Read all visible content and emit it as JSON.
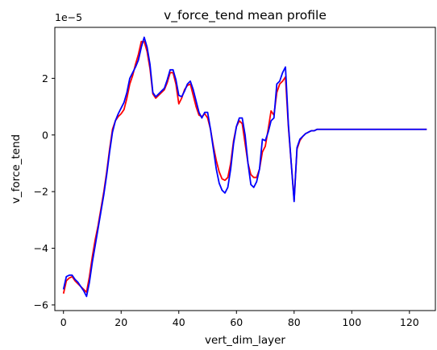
{
  "chart_data": {
    "type": "line",
    "title": "v_force_tend mean profile",
    "xlabel": "vert_dim_layer",
    "ylabel": "v_force_tend",
    "scale_note": "1e−5",
    "xlim": [
      -3,
      129
    ],
    "ylim": [
      -6.2,
      3.8
    ],
    "xticks": [
      0,
      20,
      40,
      60,
      80,
      100,
      120
    ],
    "yticks": [
      -6,
      -4,
      -2,
      0,
      2
    ],
    "grid": false,
    "legend": "none",
    "series": [
      {
        "color": "#ff0000",
        "x": [
          0,
          1,
          2,
          3,
          4,
          5,
          6,
          7,
          8,
          9,
          10,
          11,
          12,
          13,
          14,
          15,
          16,
          17,
          18,
          19,
          20,
          21,
          22,
          23,
          24,
          25,
          26,
          27,
          28,
          29,
          30,
          31,
          32,
          33,
          34,
          35,
          36,
          37,
          38,
          39,
          40,
          41,
          42,
          43,
          44,
          45,
          46,
          47,
          48,
          49,
          50,
          51,
          52,
          53,
          54,
          55,
          56,
          57,
          58,
          59,
          60,
          61,
          62,
          63,
          64,
          65,
          66,
          67,
          68,
          69,
          70,
          71,
          72,
          73,
          74,
          75,
          76,
          77,
          78,
          79,
          80,
          81,
          82,
          83,
          84,
          85,
          86,
          87,
          88,
          89,
          90,
          95,
          100,
          105,
          110,
          115,
          120,
          126
        ],
        "values": [
          -5.6,
          -5.15,
          -5.05,
          -5.0,
          -5.15,
          -5.25,
          -5.35,
          -5.45,
          -5.55,
          -5.0,
          -4.3,
          -3.7,
          -3.2,
          -2.6,
          -2.0,
          -1.3,
          -0.5,
          0.2,
          0.5,
          0.65,
          0.75,
          0.9,
          1.3,
          1.8,
          2.1,
          2.5,
          2.85,
          3.3,
          3.3,
          2.95,
          2.35,
          1.45,
          1.3,
          1.4,
          1.5,
          1.6,
          1.85,
          2.2,
          2.2,
          1.8,
          1.1,
          1.3,
          1.6,
          1.75,
          1.8,
          1.4,
          1.0,
          0.7,
          0.65,
          0.75,
          0.6,
          0.2,
          -0.4,
          -0.9,
          -1.3,
          -1.55,
          -1.6,
          -1.5,
          -1.0,
          -0.2,
          0.3,
          0.5,
          0.4,
          -0.3,
          -1.0,
          -1.4,
          -1.5,
          -1.5,
          -1.2,
          -0.6,
          -0.4,
          0.2,
          0.85,
          0.7,
          1.5,
          1.8,
          1.9,
          2.05,
          0.3,
          -1.0,
          -2.3,
          -0.5,
          -0.2,
          -0.05,
          0.05,
          0.1,
          0.15,
          0.15,
          0.2,
          0.2,
          0.2,
          0.2,
          0.2,
          0.2,
          0.2,
          0.2,
          0.2,
          0.2
        ]
      },
      {
        "color": "#0000ff",
        "x": [
          0,
          1,
          2,
          3,
          4,
          5,
          6,
          7,
          8,
          9,
          10,
          11,
          12,
          13,
          14,
          15,
          16,
          17,
          18,
          19,
          20,
          21,
          22,
          23,
          24,
          25,
          26,
          27,
          28,
          29,
          30,
          31,
          32,
          33,
          34,
          35,
          36,
          37,
          38,
          39,
          40,
          41,
          42,
          43,
          44,
          45,
          46,
          47,
          48,
          49,
          50,
          51,
          52,
          53,
          54,
          55,
          56,
          57,
          58,
          59,
          60,
          61,
          62,
          63,
          64,
          65,
          66,
          67,
          68,
          69,
          70,
          71,
          72,
          73,
          74,
          75,
          76,
          77,
          78,
          79,
          80,
          81,
          82,
          83,
          84,
          85,
          86,
          87,
          88,
          89,
          90,
          95,
          100,
          105,
          110,
          115,
          120,
          126
        ],
        "values": [
          -5.45,
          -5.0,
          -4.95,
          -4.95,
          -5.1,
          -5.2,
          -5.35,
          -5.5,
          -5.7,
          -5.2,
          -4.5,
          -3.9,
          -3.3,
          -2.7,
          -2.1,
          -1.4,
          -0.6,
          0.1,
          0.5,
          0.75,
          0.95,
          1.15,
          1.5,
          2.0,
          2.2,
          2.4,
          2.65,
          3.1,
          3.45,
          3.1,
          2.5,
          1.5,
          1.35,
          1.45,
          1.55,
          1.65,
          1.95,
          2.3,
          2.3,
          1.95,
          1.4,
          1.35,
          1.55,
          1.8,
          1.9,
          1.6,
          1.2,
          0.8,
          0.6,
          0.8,
          0.8,
          0.2,
          -0.5,
          -1.2,
          -1.7,
          -1.95,
          -2.05,
          -1.85,
          -1.2,
          -0.3,
          0.3,
          0.6,
          0.6,
          0.0,
          -1.0,
          -1.75,
          -1.85,
          -1.65,
          -1.2,
          -0.15,
          -0.2,
          0.1,
          0.5,
          0.6,
          1.8,
          1.9,
          2.2,
          2.4,
          0.4,
          -1.0,
          -2.35,
          -0.45,
          -0.15,
          -0.05,
          0.05,
          0.1,
          0.15,
          0.15,
          0.2,
          0.2,
          0.2,
          0.2,
          0.2,
          0.2,
          0.2,
          0.2,
          0.2,
          0.2
        ]
      }
    ]
  }
}
